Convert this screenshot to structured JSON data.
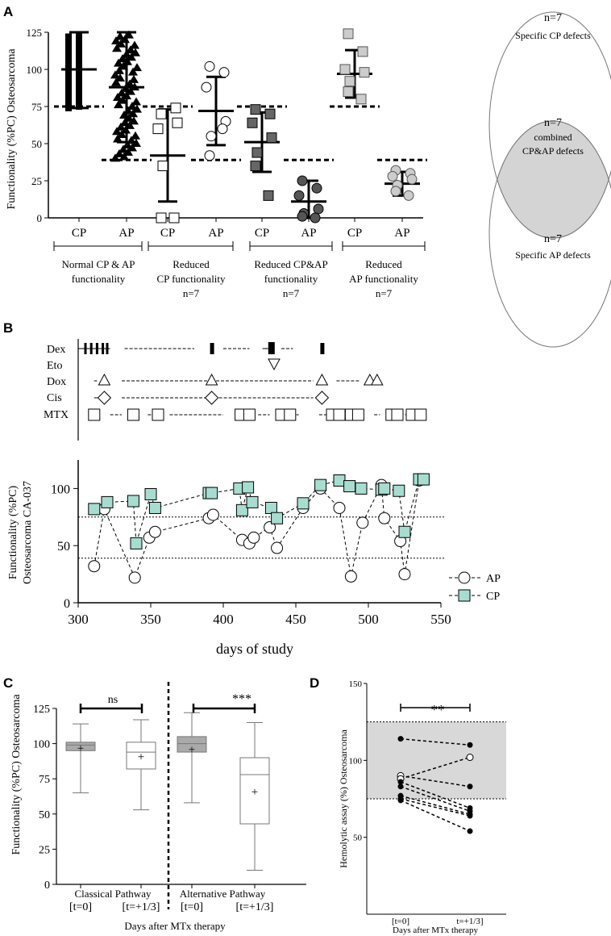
{
  "panels": {
    "A": {
      "letter": "A",
      "ylabel": "Functionality (%PC) Osteosarcoma",
      "yticks": [
        "0",
        "25",
        "50",
        "75",
        "100",
        "125"
      ],
      "ylim": [
        0,
        125
      ],
      "threshold_cp": 75,
      "threshold_ap": 39,
      "groups": [
        {
          "label": "Normal CP & AP",
          "label2": "functionality",
          "label3": ""
        },
        {
          "label": "Reduced",
          "label2": "CP functionality",
          "label3": "n=7"
        },
        {
          "label": "Reduced CP&AP",
          "label2": "functionality",
          "label3": "n=7"
        },
        {
          "label": "Reduced",
          "label2": "AP functionality",
          "label3": "n=7"
        }
      ],
      "xlabels": [
        "CP",
        "AP",
        "CP",
        "AP",
        "CP",
        "AP",
        "CP",
        "AP"
      ],
      "venn": {
        "top_n": "n=7",
        "top_label": "Specific CP defects",
        "mid_n": "n=7",
        "mid_label1": "combined",
        "mid_label2": "CP&AP defects",
        "bot_n": "n=7",
        "bot_label": "Specific AP defects"
      }
    },
    "B": {
      "letter": "B",
      "drugs": [
        "Dex",
        "Eto",
        "Dox",
        "Cis",
        "MTX"
      ],
      "ylabel1": "Functionality  (%PC)",
      "ylabel2": "Osteosarcoma CA-037",
      "yticks": [
        "0",
        "50",
        "100"
      ],
      "xticks": [
        "300",
        "350",
        "400",
        "450",
        "500",
        "550"
      ],
      "xlabel": "days of study",
      "legend": [
        "AP",
        "CP"
      ]
    },
    "C": {
      "letter": "C",
      "ylabel": "Functionality (%PC) Osteosarcoma",
      "yticks": [
        "0",
        "25",
        "50",
        "75",
        "100",
        "125"
      ],
      "sig1": "ns",
      "sig2": "***",
      "group1": "Classical Pathway",
      "group2": "Alternative Pathway",
      "xticks": [
        "[t=0]",
        "[t=+1/3]",
        "[t=0]",
        "[t=+1/3]"
      ],
      "xlabel": "Days after MTx therapy"
    },
    "D": {
      "letter": "D",
      "ylabel": "Hemolytic assay (%) Osteosarcoma",
      "yticks": [
        "50",
        "100",
        "150"
      ],
      "sig": "**",
      "xticks": [
        "[t=0]",
        "t=+1/3]"
      ],
      "xlabel": "Days after MTx therapy"
    }
  },
  "chart_data": [
    {
      "id": "A",
      "type": "scatter",
      "title": "",
      "ylabel": "Functionality (%PC) Osteosarcoma",
      "ylim": [
        0,
        125
      ],
      "categories": [
        "CP",
        "AP",
        "CP",
        "AP",
        "CP",
        "AP",
        "CP",
        "AP"
      ],
      "series": [
        {
          "name": "Reduced CP functionality - CP",
          "values": [
            70,
            74,
            60,
            64,
            35,
            0,
            0
          ],
          "mean": 42,
          "sd": 31
        },
        {
          "name": "Reduced CP functionality - AP",
          "values": [
            102,
            98,
            88,
            65,
            55,
            42,
            60
          ],
          "mean": 72,
          "sd": 23
        },
        {
          "name": "Reduced CP&AP - CP",
          "values": [
            73,
            70,
            64,
            54,
            44,
            35,
            15
          ],
          "mean": 51,
          "sd": 20
        },
        {
          "name": "Reduced CP&AP - AP",
          "values": [
            25,
            20,
            15,
            6,
            3,
            1,
            0
          ],
          "mean": 11,
          "sd": 14
        },
        {
          "name": "Reduced AP - CP",
          "values": [
            124,
            112,
            100,
            98,
            92,
            85,
            80
          ],
          "mean": 97,
          "sd": 16
        },
        {
          "name": "Reduced AP - AP",
          "values": [
            32,
            30,
            28,
            26,
            22,
            18,
            15
          ],
          "mean": 23,
          "sd": 8
        },
        {
          "name": "Normal - CP",
          "mean": 100,
          "sd": 26
        },
        {
          "name": "Normal - AP",
          "mean": 88,
          "sd": 37
        }
      ]
    },
    {
      "id": "B",
      "type": "line",
      "xlabel": "days of study",
      "ylabel": "Functionality (%PC) Osteosarcoma CA-037",
      "xlim": [
        300,
        550
      ],
      "ylim": [
        0,
        125
      ],
      "thresholds": [
        75,
        39
      ],
      "series": [
        {
          "name": "AP",
          "x": [
            311,
            318,
            339,
            349,
            353,
            390,
            393,
            413,
            418,
            421,
            432,
            437,
            455,
            467,
            480,
            488,
            496,
            509,
            511,
            522,
            525,
            535
          ],
          "y": [
            32,
            82,
            22,
            57,
            62,
            74,
            77,
            55,
            52,
            57,
            66,
            48,
            83,
            100,
            83,
            23,
            70,
            103,
            74,
            54,
            25,
            107
          ]
        },
        {
          "name": "CP",
          "x": [
            311,
            320,
            338,
            340,
            350,
            353,
            390,
            392,
            411,
            413,
            417,
            420,
            433,
            437,
            455,
            467,
            480,
            487,
            495,
            509,
            511,
            521,
            525,
            535,
            538
          ],
          "y": [
            82,
            88,
            89,
            52,
            95,
            83,
            96,
            96,
            100,
            81,
            101,
            88,
            83,
            74,
            87,
            103,
            107,
            102,
            100,
            99,
            100,
            98,
            62,
            108,
            108
          ]
        }
      ]
    },
    {
      "id": "C",
      "type": "box",
      "ylabel": "Functionality (%PC) Osteosarcoma",
      "ylim": [
        0,
        125
      ],
      "categories": [
        "Classical Pathway [t=0]",
        "Classical Pathway [t=+1/3]",
        "Alternative Pathway [t=0]",
        "Alternative Pathway [t=+1/3]"
      ],
      "boxes": [
        {
          "min": 65,
          "q1": 95,
          "median": 99,
          "q3": 101,
          "max": 114,
          "mean": 97
        },
        {
          "min": 53,
          "q1": 82,
          "median": 94,
          "q3": 101,
          "max": 117,
          "mean": 91
        },
        {
          "min": 58,
          "q1": 94,
          "median": 100,
          "q3": 105,
          "max": 122,
          "mean": 96
        },
        {
          "min": 10,
          "q1": 43,
          "median": 78,
          "q3": 90,
          "max": 115,
          "mean": 66
        }
      ]
    },
    {
      "id": "D",
      "type": "line",
      "ylabel": "Hemolytic assay (%) Osteosarcoma",
      "ylim": [
        0,
        150
      ],
      "normal_range": [
        75,
        125
      ],
      "categories": [
        "[t=0]",
        "t=+1/3]"
      ],
      "pairs": [
        [
          114,
          110
        ],
        [
          90,
          83
        ],
        [
          88,
          102
        ],
        [
          86,
          69
        ],
        [
          83,
          67
        ],
        [
          77,
          65
        ],
        [
          75,
          64
        ],
        [
          74,
          54
        ]
      ]
    }
  ]
}
